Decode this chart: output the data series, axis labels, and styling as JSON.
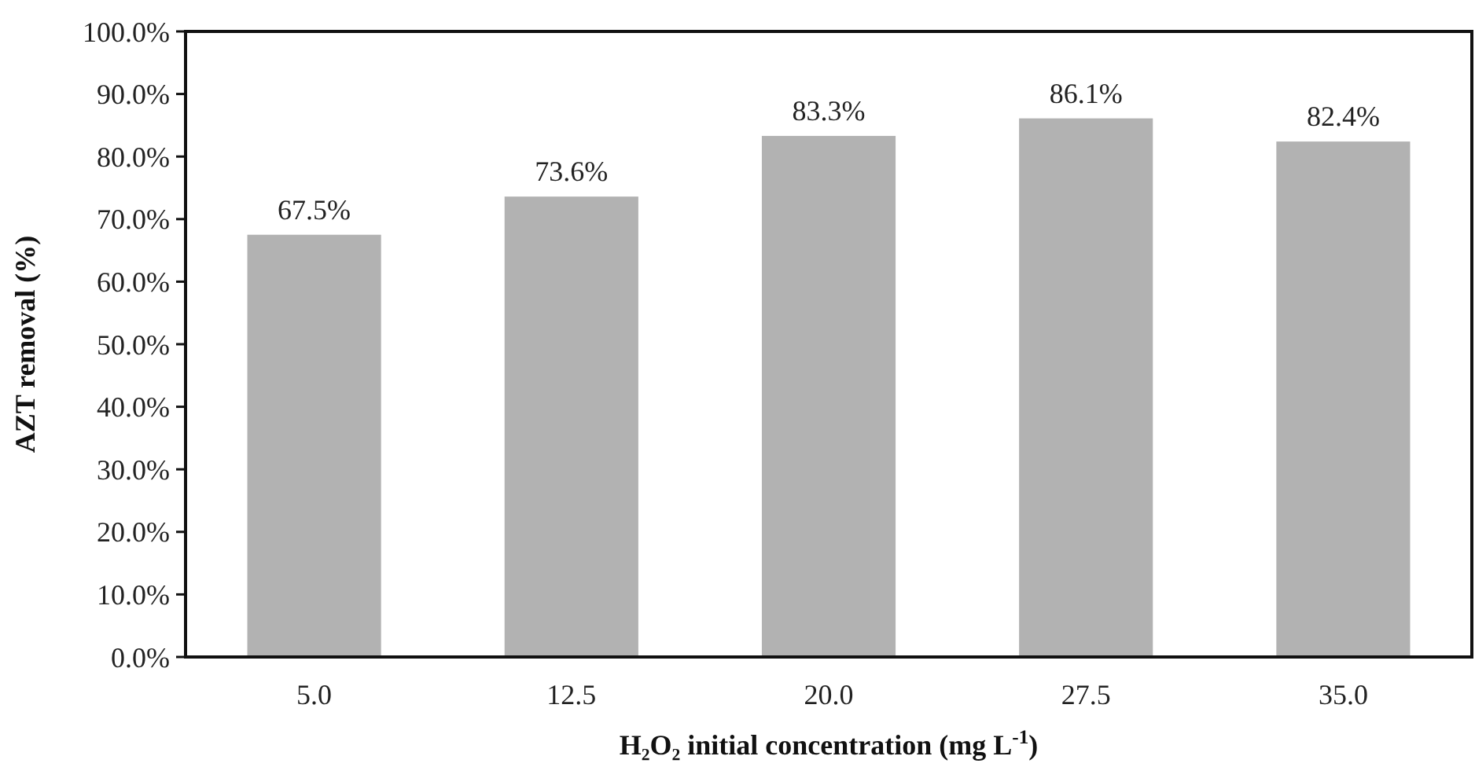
{
  "chart_data": {
    "type": "bar",
    "xlabel": "H₂O₂ initial concentration (mg L$^{-1}$)",
    "ylabel": "AZT  removal (%)",
    "categories": [
      "5.0",
      "12.5",
      "20.0",
      "27.5",
      "35.0"
    ],
    "values": [
      67.5,
      73.6,
      83.3,
      86.1,
      82.4
    ],
    "value_labels": [
      "67.5%",
      "73.6%",
      "83.3%",
      "86.1%",
      "82.4%"
    ],
    "color": "#b2b2b2",
    "ylim": [
      0,
      100
    ],
    "yticks": [
      {
        "value": 0,
        "label": "0.0%"
      },
      {
        "value": 10,
        "label": "10.0%"
      },
      {
        "value": 20,
        "label": "20.0%"
      },
      {
        "value": 30,
        "label": "30.0%"
      },
      {
        "value": 40,
        "label": "40.0%"
      },
      {
        "value": 50,
        "label": "50.0%"
      },
      {
        "value": 60,
        "label": "60.0%"
      },
      {
        "value": 70,
        "label": "70.0%"
      },
      {
        "value": 80,
        "label": "80.0%"
      },
      {
        "value": 90,
        "label": "90.0%"
      },
      {
        "value": 100,
        "label": "100.0%"
      }
    ],
    "grid": false
  }
}
